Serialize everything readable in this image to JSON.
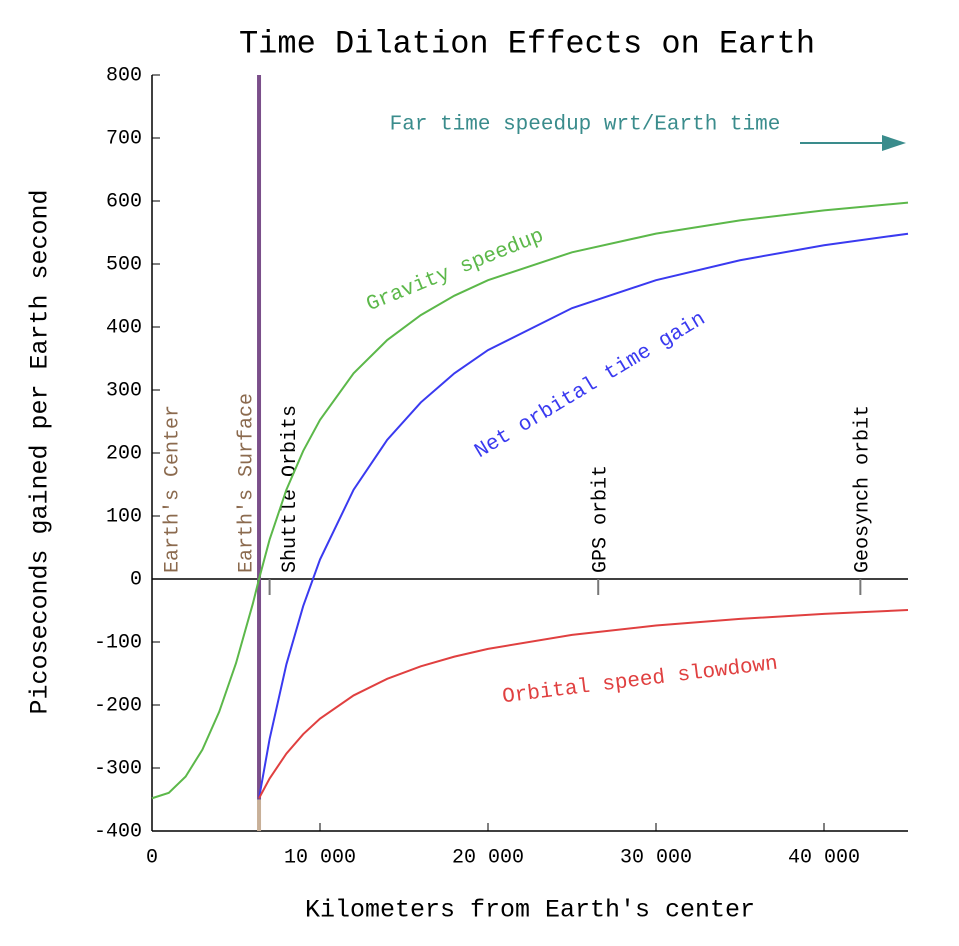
{
  "chart_data": {
    "type": "line",
    "title": "Time Dilation Effects on Earth",
    "x_label": "Kilometers from Earth's center",
    "y_label": "Picoseconds gained per Earth second",
    "xlim": [
      0,
      45000
    ],
    "ylim": [
      -400,
      800
    ],
    "xticks": [
      0,
      {
        "value": 10000,
        "label": "10 000"
      },
      {
        "value": 20000,
        "label": "20 000"
      },
      {
        "value": 30000,
        "label": "30 000"
      },
      {
        "value": 40000,
        "label": "40 000"
      }
    ],
    "yticks": [
      -400,
      -300,
      -200,
      -100,
      0,
      100,
      200,
      300,
      400,
      500,
      600,
      700,
      800
    ],
    "series": [
      {
        "name": "Gravity speedup",
        "color": "#5cb84a",
        "x": [
          0,
          1000,
          2000,
          3000,
          4000,
          5000,
          6000,
          6371,
          7000,
          8000,
          9000,
          10000,
          12000,
          14000,
          16000,
          18000,
          20000,
          25000,
          30000,
          35000,
          40000,
          45000
        ],
        "values": [
          -348,
          -339.4,
          -313.7,
          -270.8,
          -210.8,
          -133.7,
          -39.4,
          0,
          62.6,
          141.7,
          203.3,
          252.6,
          326.5,
          379.3,
          418.9,
          449.7,
          474.3,
          518.6,
          548.2,
          569.3,
          585.2,
          597.4
        ]
      },
      {
        "name": "Net orbital time gain",
        "color": "#3a3af0",
        "x": [
          6371,
          7000,
          8000,
          9000,
          10000,
          12000,
          14000,
          16000,
          18000,
          20000,
          25000,
          30000,
          35000,
          40000,
          45000
        ],
        "values": [
          -348,
          -254.1,
          -135.4,
          -43.0,
          30.9,
          141.7,
          220.9,
          280.3,
          326.5,
          363.4,
          429.9,
          474.3,
          506.0,
          529.8,
          548.1
        ]
      },
      {
        "name": "Orbital speed slowdown",
        "color": "#e04040",
        "x": [
          6371,
          7000,
          8000,
          9000,
          10000,
          12000,
          14000,
          16000,
          18000,
          20000,
          25000,
          30000,
          35000,
          40000,
          45000
        ],
        "values": [
          -348,
          -316.7,
          -277.1,
          -246.3,
          -221.7,
          -184.8,
          -158.4,
          -138.6,
          -123.2,
          -110.9,
          -88.7,
          -73.9,
          -63.3,
          -55.4,
          -49.3
        ]
      }
    ],
    "markers": [
      {
        "label": "Earth's Center",
        "x": 0,
        "color": "#8b6a4e"
      },
      {
        "label": "Earth's Surface",
        "x": 6371,
        "color": "#8b6a4e"
      },
      {
        "label": "Shuttle Orbits",
        "x": 7000,
        "color": "#000000"
      },
      {
        "label": "GPS orbit",
        "x": 26560,
        "color": "#000000"
      },
      {
        "label": "Geosynch orbit",
        "x": 42164,
        "color": "#000000"
      }
    ],
    "annotation": "Far time speedup wrt/Earth time"
  }
}
